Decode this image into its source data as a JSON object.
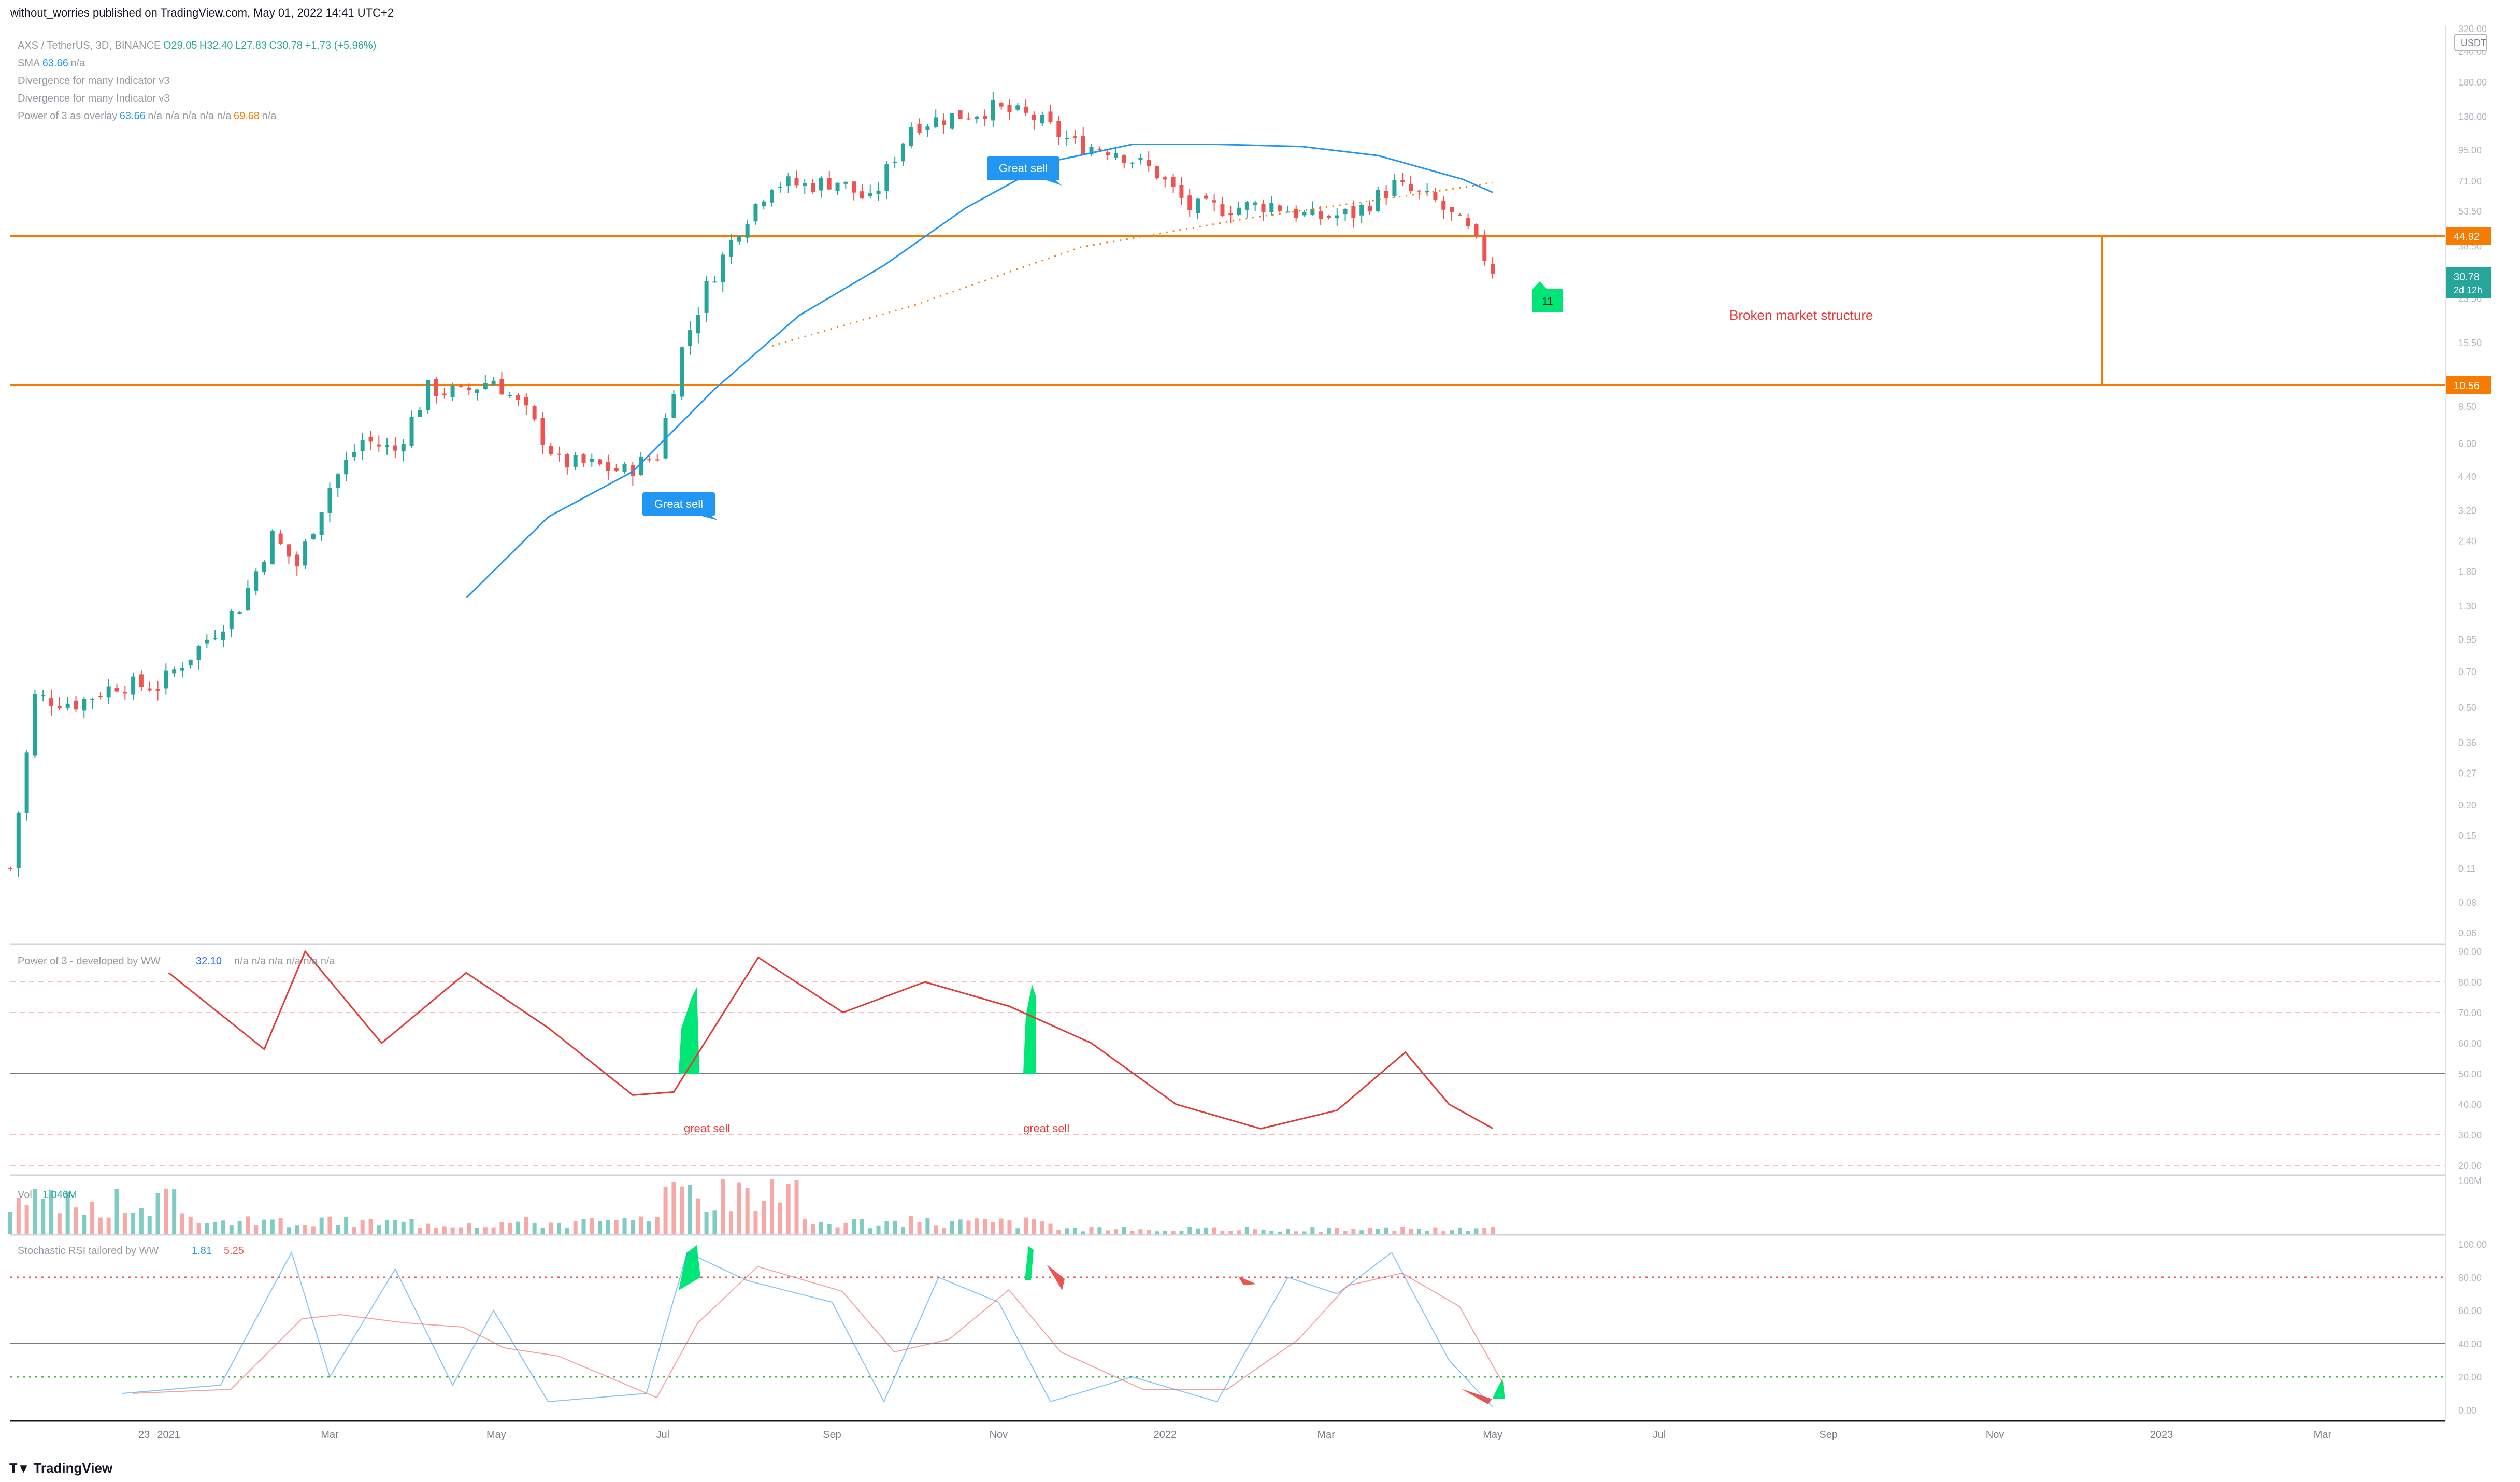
{
  "header": {
    "published": "without_worries published on TradingView.com, May 01, 2022 14:41 UTC+2"
  },
  "footer": {
    "brand": "TradingView",
    "brand_icon": "tradingview-logo-icon"
  },
  "colors": {
    "up": "#26a69a",
    "down": "#ef5350",
    "orange": "#f57c00",
    "sma": "#2196f3",
    "callout": "#2196f3",
    "green_marker": "#00e676",
    "red_text": "#e53935"
  },
  "legend": {
    "symbol": "AXS / TetherUS, 3D, BINANCE",
    "ohlc": {
      "o": "O29.05",
      "h": "H32.40",
      "l": "L27.83",
      "c": "C30.78",
      "chg": "+1.73 (+5.96%)"
    },
    "lines": [
      {
        "name": "SMA",
        "v1": "63.66",
        "v2": "n/a"
      },
      {
        "name": "Divergence for many Indicator v3",
        "v1": "",
        "v2": ""
      },
      {
        "name": "Divergence for many Indicator v3",
        "v1": "",
        "v2": ""
      },
      {
        "name": "Power of 3 as overlay",
        "v1": "63.66",
        "v2": "n/a  n/a  n/a  n/a  n/a",
        "v3": "69.68",
        "v4": "n/a"
      }
    ]
  },
  "annotations": {
    "callout1": "Great sell",
    "callout2": "Great sell",
    "green_count": "11",
    "broken": "Broken market structure",
    "osc_label1": "great sell",
    "osc_label2": "great sell"
  },
  "price_scale": {
    "currency": "USDT",
    "top_label": "320.00",
    "ticks": [
      "240.00",
      "180.00",
      "130.00",
      "95.00",
      "71.00",
      "53.50",
      "38.50",
      "23.50",
      "15.50",
      "10.50",
      "8.50",
      "6.00",
      "4.40",
      "3.20",
      "2.40",
      "1.80",
      "1.30",
      "0.95",
      "0.70",
      "0.50",
      "0.36",
      "0.27",
      "0.20",
      "0.15",
      "0.11",
      "0.08",
      "0.06"
    ],
    "badges": {
      "level_high": "44.92",
      "level_low": "10.56",
      "last": "30.78",
      "countdown": "2d 12h"
    }
  },
  "time_axis": {
    "labels": [
      "23",
      "2021",
      "Mar",
      "May",
      "Jul",
      "Sep",
      "Nov",
      "2022",
      "Mar",
      "May",
      "Jul",
      "Sep",
      "Nov",
      "2023",
      "Mar"
    ]
  },
  "pane_power": {
    "title": "Power of 3 - developed by WW",
    "value": "32.10",
    "rest": "n/a  n/a  n/a  n/a  n/a  n/a",
    "ticks": [
      "90.00",
      "80.00",
      "70.00",
      "60.00",
      "50.00",
      "40.00",
      "30.00",
      "20.00"
    ]
  },
  "pane_volume": {
    "title": "Vol",
    "value": "1.046M",
    "top_tick": "100M"
  },
  "pane_stoch": {
    "title": "Stochastic RSI tailored by WW",
    "k": "1.81",
    "d": "5.25",
    "ticks": [
      "100.00",
      "80.00",
      "60.00",
      "40.00",
      "20.00",
      "0.00"
    ]
  },
  "chart_data": {
    "type": "candlestick",
    "symbol": "AXS / TetherUS",
    "interval": "3D",
    "scale": "log",
    "ylim": [
      0.06,
      320
    ],
    "xlim": [
      "2020-11-04",
      "2023-04-15"
    ],
    "horizontal_levels": [
      44.92,
      10.56
    ],
    "last_price": 30.78,
    "series": [
      {
        "name": "AXS price (approx. closes)",
        "x": [
          "2020-11-04",
          "2020-11-13",
          "2020-11-28",
          "2020-12-13",
          "2020-12-28",
          "2021-01-12",
          "2021-01-27",
          "2021-02-08",
          "2021-02-17",
          "2021-03-01",
          "2021-03-13",
          "2021-03-25",
          "2021-04-06",
          "2021-04-18",
          "2021-04-30",
          "2021-05-12",
          "2021-05-24",
          "2021-06-05",
          "2021-06-17",
          "2021-06-29",
          "2021-07-08",
          "2021-07-17",
          "2021-07-29",
          "2021-08-10",
          "2021-08-22",
          "2021-09-03",
          "2021-09-15",
          "2021-09-30",
          "2021-10-15",
          "2021-10-30",
          "2021-11-14",
          "2021-11-29",
          "2021-12-14",
          "2021-12-29",
          "2022-01-10",
          "2022-01-25",
          "2022-02-09",
          "2022-02-24",
          "2022-03-11",
          "2022-03-26",
          "2022-04-10",
          "2022-04-22",
          "2022-05-01"
        ],
        "y": [
          0.11,
          0.55,
          0.52,
          0.62,
          0.61,
          0.88,
          1.3,
          2.5,
          1.9,
          4.0,
          6.2,
          5.6,
          10.0,
          9.6,
          11.0,
          8.0,
          5.0,
          4.9,
          4.6,
          5.4,
          14.5,
          26.0,
          46.0,
          70.0,
          68.0,
          71.0,
          58.0,
          120.0,
          130.0,
          140.0,
          128.0,
          100.0,
          95.0,
          76.0,
          55.0,
          55.0,
          57.0,
          50.0,
          52.0,
          68.0,
          58.0,
          44.0,
          30.78
        ]
      },
      {
        "name": "SMA",
        "x": [
          "2021-04-20",
          "2021-05-20",
          "2021-06-20",
          "2021-07-20",
          "2021-08-20",
          "2021-09-20",
          "2021-10-20",
          "2021-11-20",
          "2021-12-20",
          "2022-01-20",
          "2022-02-20",
          "2022-03-20",
          "2022-04-20",
          "2022-05-01"
        ],
        "y": [
          1.4,
          3.0,
          4.6,
          10.0,
          20.0,
          32.0,
          55.0,
          85.0,
          100.0,
          100.0,
          98.0,
          90.0,
          72.0,
          63.66
        ]
      },
      {
        "name": "Power of 3 as overlay",
        "x": [
          "2021-08-10",
          "2021-10-01",
          "2021-12-01",
          "2022-02-01",
          "2022-04-01",
          "2022-05-01"
        ],
        "y": [
          15.0,
          22.0,
          38.0,
          50.0,
          62.0,
          69.68
        ]
      }
    ],
    "pane_power": {
      "x": [
        "2021-01-01",
        "2021-02-05",
        "2021-02-20",
        "2021-03-20",
        "2021-04-20",
        "2021-05-20",
        "2021-06-20",
        "2021-07-05",
        "2021-08-05",
        "2021-09-05",
        "2021-10-05",
        "2021-11-05",
        "2021-12-05",
        "2022-01-05",
        "2022-02-05",
        "2022-03-05",
        "2022-03-30",
        "2022-04-15",
        "2022-05-01"
      ],
      "y": [
        83,
        58,
        90,
        60,
        83,
        65,
        43,
        44,
        88,
        70,
        80,
        72,
        60,
        40,
        32,
        38,
        57,
        40,
        32.1
      ],
      "levels": [
        80,
        70,
        50,
        30,
        20
      ]
    },
    "pane_volume": {
      "last": "1.046M"
    },
    "pane_stoch": {
      "k_last": 1.81,
      "d_last": 5.25,
      "levels": [
        80,
        40,
        20
      ]
    }
  }
}
